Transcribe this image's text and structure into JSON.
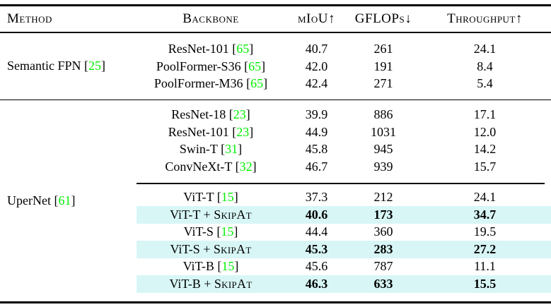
{
  "colors": {
    "citation_green": "#00F000",
    "highlight_cyan": "#D8F6F6",
    "rule_black": "#000000"
  },
  "table": {
    "header": {
      "method": "Method",
      "backbone": "Backbone",
      "miou": "mIoU↑",
      "gflops": "GFLOPs↓",
      "throughput": "Throughput↑"
    },
    "sections": [
      {
        "method": {
          "name": "Semantic FPN",
          "cite": "25"
        },
        "row_groups": [
          [
            {
              "backbone": "ResNet-101",
              "cite": "65",
              "miou": "40.7",
              "gflops": "261",
              "throughput": "24.1",
              "highlight": false
            },
            {
              "backbone": "PoolFormer-S36",
              "cite": "65",
              "miou": "42.0",
              "gflops": "191",
              "throughput": "8.4",
              "highlight": false
            },
            {
              "backbone": "PoolFormer-M36",
              "cite": "65",
              "miou": "42.4",
              "gflops": "271",
              "throughput": "5.4",
              "highlight": false
            }
          ]
        ]
      },
      {
        "method": {
          "name": "UperNet",
          "cite": "61"
        },
        "row_groups": [
          [
            {
              "backbone": "ResNet-18",
              "cite": "23",
              "miou": "39.9",
              "gflops": "886",
              "throughput": "17.1",
              "highlight": false
            },
            {
              "backbone": "ResNet-101",
              "cite": "23",
              "miou": "44.9",
              "gflops": "1031",
              "throughput": "12.0",
              "highlight": false
            },
            {
              "backbone": "Swin-T",
              "cite": "31",
              "miou": "45.8",
              "gflops": "945",
              "throughput": "14.2",
              "highlight": false
            },
            {
              "backbone": "ConvNeXt-T",
              "cite": "32",
              "miou": "46.7",
              "gflops": "939",
              "throughput": "15.7",
              "highlight": false
            }
          ],
          [
            {
              "backbone": "ViT-T",
              "cite": "15",
              "miou": "37.3",
              "gflops": "212",
              "throughput": "24.1",
              "highlight": false
            },
            {
              "backbone": "ViT-T +",
              "skipat": "SkipAt",
              "miou": "40.6",
              "gflops": "173",
              "throughput": "34.7",
              "highlight": true
            },
            {
              "backbone": "ViT-S",
              "cite": "15",
              "miou": "44.4",
              "gflops": "360",
              "throughput": "19.5",
              "highlight": false
            },
            {
              "backbone": "ViT-S +",
              "skipat": "SkipAt",
              "miou": "45.3",
              "gflops": "283",
              "throughput": "27.2",
              "highlight": true
            },
            {
              "backbone": "ViT-B",
              "cite": "15",
              "miou": "45.6",
              "gflops": "787",
              "throughput": "11.1",
              "highlight": false
            },
            {
              "backbone": "ViT-B +",
              "skipat": "SkipAt",
              "miou": "46.3",
              "gflops": "633",
              "throughput": "15.5",
              "highlight": true
            }
          ]
        ]
      }
    ]
  }
}
